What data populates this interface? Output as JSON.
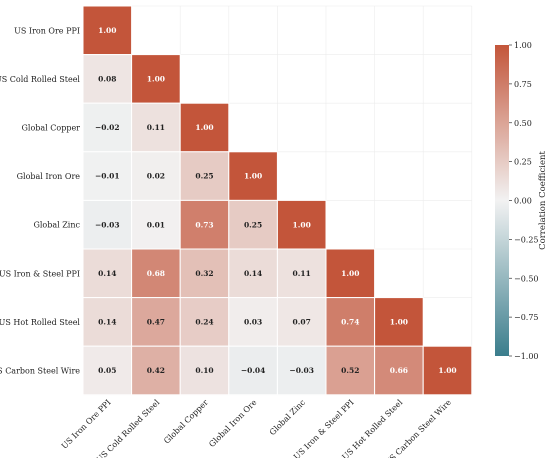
{
  "chart_data": {
    "type": "heatmap",
    "triangle": "lower",
    "labels": [
      "US Iron Ore PPI",
      "US Cold Rolled Steel",
      "Global Copper",
      "Global Iron Ore",
      "Global Zinc",
      "US Iron & Steel PPI",
      "US Hot Rolled Steel",
      "US Carbon Steel Wire"
    ],
    "matrix": [
      [
        1.0
      ],
      [
        0.08,
        1.0
      ],
      [
        -0.02,
        0.11,
        1.0
      ],
      [
        -0.01,
        0.02,
        0.25,
        1.0
      ],
      [
        -0.03,
        0.01,
        0.73,
        0.25,
        1.0
      ],
      [
        0.14,
        0.68,
        0.32,
        0.14,
        0.11,
        1.0
      ],
      [
        0.14,
        0.47,
        0.24,
        0.03,
        0.07,
        0.74,
        1.0
      ],
      [
        0.05,
        0.42,
        0.1,
        -0.04,
        -0.03,
        0.52,
        0.66,
        1.0
      ]
    ],
    "vmin": -1.0,
    "vmax": 1.0,
    "colorbar_label": "Correlation Coefficient",
    "colorbar_ticks": [
      "1.00",
      "0.75",
      "0.50",
      "0.25",
      "0.00",
      "−0.25",
      "−0.50",
      "−0.75",
      "−1.00"
    ],
    "colors": {
      "negative": "#3a7d8c",
      "neutral": "#f2f2f2",
      "positive": "#c3553a"
    }
  }
}
